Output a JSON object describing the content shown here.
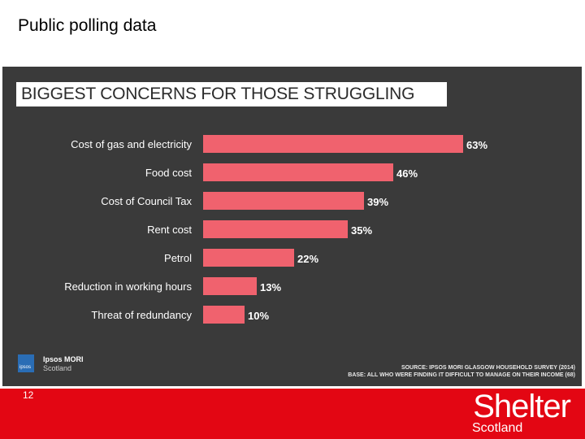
{
  "slide": {
    "title": "Public polling data",
    "page_number": "12"
  },
  "chart_data": {
    "type": "bar",
    "orientation": "horizontal",
    "title": "BIGGEST CONCERNS FOR THOSE STRUGGLING",
    "categories": [
      "Cost of gas and electricity",
      "Food cost",
      "Cost of Council Tax",
      "Rent cost",
      "Petrol",
      "Reduction in working hours",
      "Threat of redundancy"
    ],
    "values": [
      63,
      46,
      39,
      35,
      22,
      13,
      10
    ],
    "value_labels": [
      "63%",
      "46%",
      "39%",
      "35%",
      "22%",
      "13%",
      "10%"
    ],
    "unit": "%",
    "xlim": [
      0,
      100
    ],
    "grid": false,
    "legend": "none",
    "bar_color": "#f0626e"
  },
  "logo": {
    "icon_text": "ipsos",
    "name": "Ipsos MORI",
    "subtitle": "Scotland"
  },
  "source": {
    "line1": "SOURCE: IPSOS MORI GLASGOW HOUSEHOLD SURVEY (2014)",
    "line2": "BASE: ALL WHO WERE FINDING IT DIFFICULT TO MANAGE ON THEIR INCOME (68)"
  },
  "brand": {
    "name": "Shelter",
    "subtitle": "Scotland",
    "color": "#e30613"
  }
}
